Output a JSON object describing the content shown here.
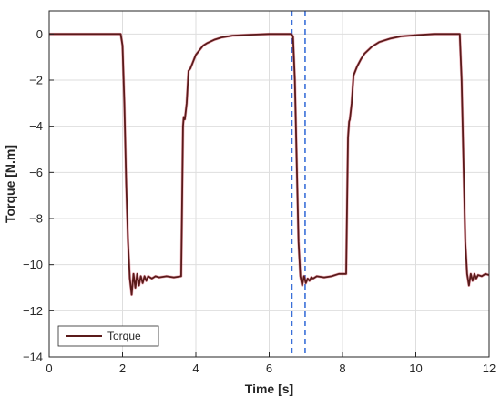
{
  "chart_data": {
    "type": "line",
    "xlabel": "Time [s]",
    "ylabel": "Torque [N.m]",
    "xlim": [
      0,
      12
    ],
    "ylim": [
      -14,
      1
    ],
    "xticks": [
      0,
      2,
      4,
      6,
      8,
      10,
      12
    ],
    "yticks": [
      0,
      -2,
      -4,
      -6,
      -8,
      -10,
      -12,
      -14
    ],
    "grid": true,
    "legend_position": "bottom-left",
    "series": [
      {
        "name": "Torque",
        "color": "#5a1a1a",
        "x": [
          0,
          0.5,
          1,
          1.5,
          1.95,
          2.0,
          2.05,
          2.1,
          2.15,
          2.2,
          2.25,
          2.3,
          2.35,
          2.4,
          2.45,
          2.5,
          2.55,
          2.6,
          2.65,
          2.7,
          2.8,
          2.9,
          3.0,
          3.2,
          3.4,
          3.6,
          3.62,
          3.65,
          3.67,
          3.7,
          3.75,
          3.8,
          3.85,
          3.9,
          3.95,
          4.0,
          4.1,
          4.2,
          4.3,
          4.5,
          4.7,
          5.0,
          5.5,
          6.0,
          6.5,
          6.6,
          6.65,
          6.7,
          6.75,
          6.8,
          6.85,
          6.9,
          6.95,
          7.0,
          7.05,
          7.1,
          7.15,
          7.2,
          7.3,
          7.5,
          7.7,
          7.9,
          8.1,
          8.12,
          8.15,
          8.18,
          8.2,
          8.25,
          8.3,
          8.35,
          8.4,
          8.5,
          8.6,
          8.8,
          9.0,
          9.3,
          9.6,
          10.0,
          10.5,
          11.0,
          11.2,
          11.25,
          11.3,
          11.35,
          11.4,
          11.45,
          11.5,
          11.55,
          11.6,
          11.65,
          11.7,
          11.8,
          11.9,
          12.0
        ],
        "y": [
          0,
          0,
          0,
          0,
          0,
          -0.5,
          -3.0,
          -6.5,
          -9.0,
          -10.6,
          -11.3,
          -10.4,
          -11.0,
          -10.4,
          -10.9,
          -10.5,
          -10.8,
          -10.5,
          -10.7,
          -10.5,
          -10.6,
          -10.5,
          -10.55,
          -10.5,
          -10.55,
          -10.5,
          -8.0,
          -4.0,
          -3.6,
          -3.7,
          -3.0,
          -1.6,
          -1.5,
          -1.3,
          -1.1,
          -0.9,
          -0.7,
          -0.5,
          -0.4,
          -0.25,
          -0.15,
          -0.07,
          -0.03,
          0,
          0,
          0,
          -0.1,
          -2.0,
          -5.5,
          -9.0,
          -10.5,
          -10.9,
          -10.5,
          -10.8,
          -10.6,
          -10.7,
          -10.55,
          -10.6,
          -10.5,
          -10.55,
          -10.5,
          -10.4,
          -10.4,
          -8.0,
          -4.5,
          -3.8,
          -3.7,
          -3.0,
          -1.8,
          -1.6,
          -1.4,
          -1.1,
          -0.85,
          -0.55,
          -0.35,
          -0.2,
          -0.1,
          -0.05,
          0,
          0,
          0,
          -2.0,
          -5.5,
          -9.0,
          -10.4,
          -10.9,
          -10.4,
          -10.7,
          -10.4,
          -10.6,
          -10.45,
          -10.5,
          -10.4,
          -10.45
        ]
      }
    ],
    "vertical_markers": [
      {
        "x": 6.62,
        "style": "dashed",
        "color": "#3a6fd8"
      },
      {
        "x": 6.98,
        "style": "dashed",
        "color": "#3a6fd8"
      }
    ]
  }
}
